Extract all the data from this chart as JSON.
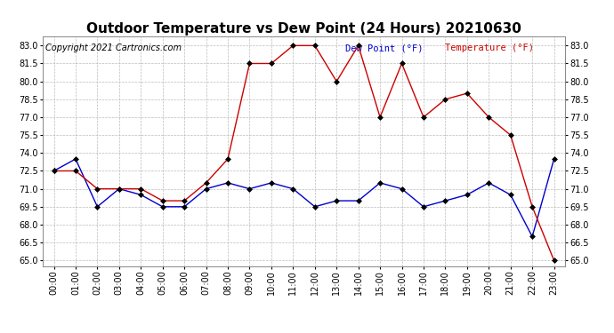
{
  "title": "Outdoor Temperature vs Dew Point (24 Hours) 20210630",
  "copyright": "Copyright 2021 Cartronics.com",
  "legend_dew": "Dew Point (°F)",
  "legend_temp": "Temperature (°F)",
  "hours": [
    "00:00",
    "01:00",
    "02:00",
    "03:00",
    "04:00",
    "05:00",
    "06:00",
    "07:00",
    "08:00",
    "09:00",
    "10:00",
    "11:00",
    "12:00",
    "13:00",
    "14:00",
    "15:00",
    "16:00",
    "17:00",
    "18:00",
    "19:00",
    "20:00",
    "21:00",
    "22:00",
    "23:00"
  ],
  "temperature": [
    72.5,
    72.5,
    71.0,
    71.0,
    71.0,
    70.0,
    70.0,
    71.5,
    73.5,
    81.5,
    81.5,
    83.0,
    83.0,
    80.0,
    83.0,
    77.0,
    81.5,
    77.0,
    78.5,
    79.0,
    77.0,
    75.5,
    69.5,
    65.0
  ],
  "dew_point": [
    72.5,
    73.5,
    69.5,
    71.0,
    70.5,
    69.5,
    69.5,
    71.0,
    71.5,
    71.0,
    71.5,
    71.0,
    69.5,
    70.0,
    70.0,
    71.5,
    71.0,
    69.5,
    70.0,
    70.5,
    71.5,
    70.5,
    67.0,
    73.5
  ],
  "ylim_min": 64.5,
  "ylim_max": 83.75,
  "yticks": [
    65.0,
    66.5,
    68.0,
    69.5,
    71.0,
    72.5,
    74.0,
    75.5,
    77.0,
    78.5,
    80.0,
    81.5,
    83.0
  ],
  "temp_color": "#cc0000",
  "dew_color": "#0000cc",
  "marker_color": "black",
  "bg_color": "#ffffff",
  "grid_color": "#bbbbbb",
  "title_fontsize": 11,
  "tick_fontsize": 7,
  "copyright_fontsize": 7,
  "legend_fontsize": 7.5
}
